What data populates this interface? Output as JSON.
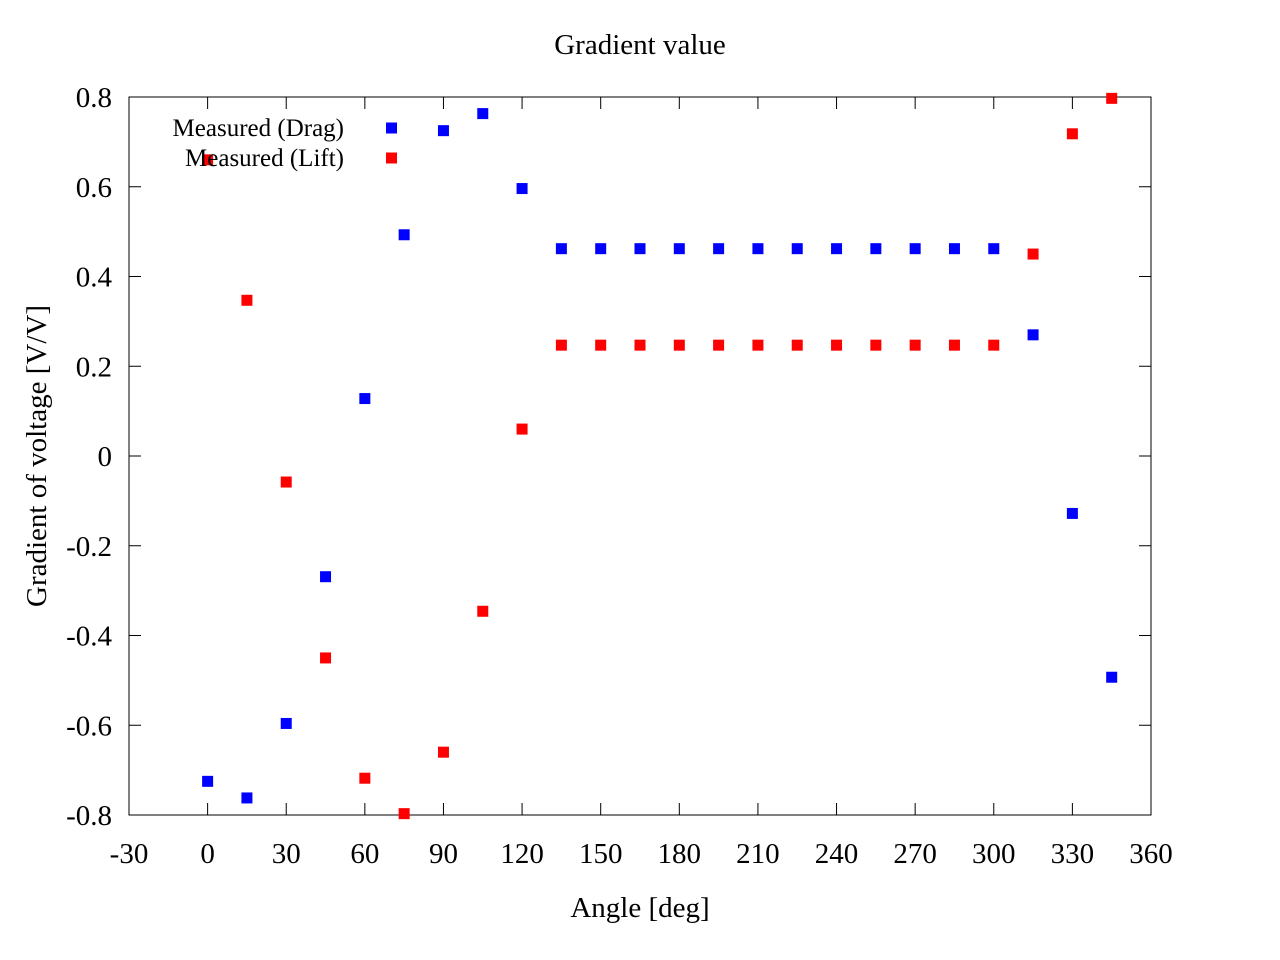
{
  "chart_data": {
    "type": "scatter",
    "title": "Gradient value",
    "xlabel": "Angle [deg]",
    "ylabel": "Gradient of voltage [V/V]",
    "xlim": [
      -30,
      360
    ],
    "ylim": [
      -0.8,
      0.8
    ],
    "xticks": [
      -30,
      0,
      30,
      60,
      90,
      120,
      150,
      180,
      210,
      240,
      270,
      300,
      330,
      360
    ],
    "yticks": [
      -0.8,
      -0.6,
      -0.4,
      -0.2,
      0,
      0.2,
      0.4,
      0.6,
      0.8
    ],
    "xtick_labels": [
      "-30",
      "0",
      "30",
      "60",
      "90",
      "120",
      "150",
      "180",
      "210",
      "240",
      "270",
      "300",
      "330",
      "360"
    ],
    "ytick_labels": [
      "-0.8",
      "-0.6",
      "-0.4",
      "-0.2",
      "0",
      "0.2",
      "0.4",
      "0.6",
      "0.8"
    ],
    "grid": false,
    "legend_position": "top-left",
    "x": [
      0,
      15,
      30,
      45,
      60,
      75,
      90,
      105,
      120,
      135,
      150,
      165,
      180,
      195,
      210,
      225,
      240,
      255,
      270,
      285,
      300,
      315,
      330,
      345
    ],
    "series": [
      {
        "name": "Measured (Drag)",
        "color": "#0000ff",
        "marker": "square",
        "values": [
          -0.725,
          -0.762,
          -0.596,
          -0.269,
          0.128,
          0.493,
          0.725,
          0.763,
          0.596,
          0.462,
          0.462,
          0.462,
          0.462,
          0.462,
          0.462,
          0.462,
          0.462,
          0.462,
          0.462,
          0.462,
          0.462,
          0.27,
          -0.128,
          -0.493
        ]
      },
      {
        "name": "Measured (Lift)",
        "color": "#ff0000",
        "marker": "square",
        "values": [
          0.66,
          0.347,
          -0.058,
          -0.45,
          -0.718,
          -0.797,
          -0.66,
          -0.346,
          0.06,
          0.247,
          0.247,
          0.247,
          0.247,
          0.247,
          0.247,
          0.247,
          0.247,
          0.247,
          0.247,
          0.247,
          0.247,
          0.45,
          0.718,
          0.797
        ]
      }
    ]
  }
}
